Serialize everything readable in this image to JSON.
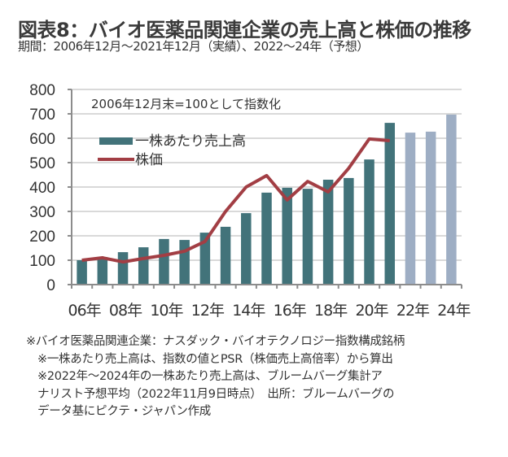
{
  "header": {
    "title": "図表8：バイオ医薬品関連企業の売上高と株価の推移",
    "subtitle": "期間：2006年12月～2021年12月（実績）、2022～24年（予想）"
  },
  "colors": {
    "bar_actual": "#42737a",
    "bar_forecast": "#9eaec4",
    "line_price": "#a23e44",
    "axis": "#8c8c8c",
    "grid": "#d9d9d9"
  },
  "chart_data": {
    "type": "bar",
    "title": "図表8：バイオ医薬品関連企業の売上高と株価の推移",
    "subtitle": "期間：2006年12月～2021年12月（実績）、2022～24年（予想）",
    "annotation": "2006年12月末=100として指数化",
    "xlabel": "",
    "ylabel": "",
    "ylim": [
      0,
      800
    ],
    "yticks": [
      0,
      100,
      200,
      300,
      400,
      500,
      600,
      700,
      800
    ],
    "grid": true,
    "legend_position": "top-left",
    "categories": [
      "2006",
      "2007",
      "2008",
      "2009",
      "2010",
      "2011",
      "2012",
      "2013",
      "2014",
      "2015",
      "2016",
      "2017",
      "2018",
      "2019",
      "2020",
      "2021",
      "2022",
      "2023",
      "2024"
    ],
    "xtick_labels": [
      "06年",
      "08年",
      "10年",
      "12年",
      "14年",
      "16年",
      "18年",
      "20年",
      "22年",
      "24年"
    ],
    "series": [
      {
        "name": "一株あたり売上高",
        "type": "bar",
        "values": [
          100,
          113,
          133,
          153,
          187,
          183,
          213,
          237,
          293,
          377,
          397,
          393,
          430,
          437,
          513,
          663,
          623,
          627,
          697
        ],
        "forecast_from_index": 16
      },
      {
        "name": "株価",
        "type": "line",
        "values": [
          100,
          110,
          93,
          107,
          120,
          137,
          177,
          300,
          400,
          447,
          347,
          423,
          380,
          477,
          597,
          590,
          null,
          null,
          null
        ]
      }
    ]
  },
  "footnotes": [
    "※バイオ医薬品関連企業：ナスダック・バイオテクノロジー指数構成銘柄",
    "※一株あたり売上高は、指数の値とPSR（株価売上高倍率）から算出",
    "※2022年～2024年の一株あたり売上高は、ブルームバーグ集計ア",
    "ナリスト予想平均（2022年11月9日時点）　出所：ブルームバーグの",
    "データ基にピクテ・ジャパン作成"
  ]
}
